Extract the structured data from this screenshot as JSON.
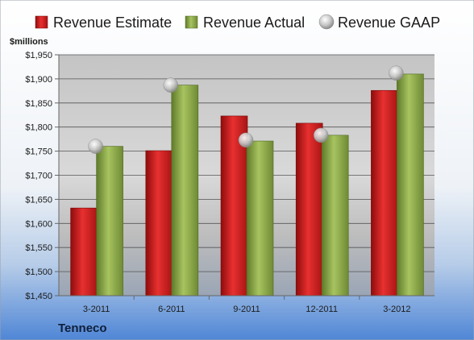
{
  "chart_data": {
    "type": "bar",
    "company": "Tenneco",
    "ylabel": "$millions",
    "ylim": [
      1450,
      1950
    ],
    "ytick_step": 50,
    "ytick_labels": [
      "$1,450",
      "$1,500",
      "$1,550",
      "$1,600",
      "$1,650",
      "$1,700",
      "$1,750",
      "$1,800",
      "$1,850",
      "$1,900",
      "$1,950"
    ],
    "grid": true,
    "legend_position": "top",
    "categories": [
      "3-2011",
      "6-2011",
      "9-2011",
      "12-2011",
      "3-2012"
    ],
    "series": [
      {
        "name": "Revenue Estimate",
        "kind": "bar",
        "color": "#d42020",
        "values": [
          1632,
          1751,
          1823,
          1808,
          1876
        ]
      },
      {
        "name": "Revenue Actual",
        "kind": "bar",
        "color": "#8fac4c",
        "values": [
          1760,
          1887,
          1771,
          1783,
          1910
        ]
      },
      {
        "name": "Revenue GAAP",
        "kind": "marker",
        "color": "#b8b8b8",
        "values": [
          1760,
          1887,
          1773,
          1783,
          1912
        ]
      }
    ]
  }
}
